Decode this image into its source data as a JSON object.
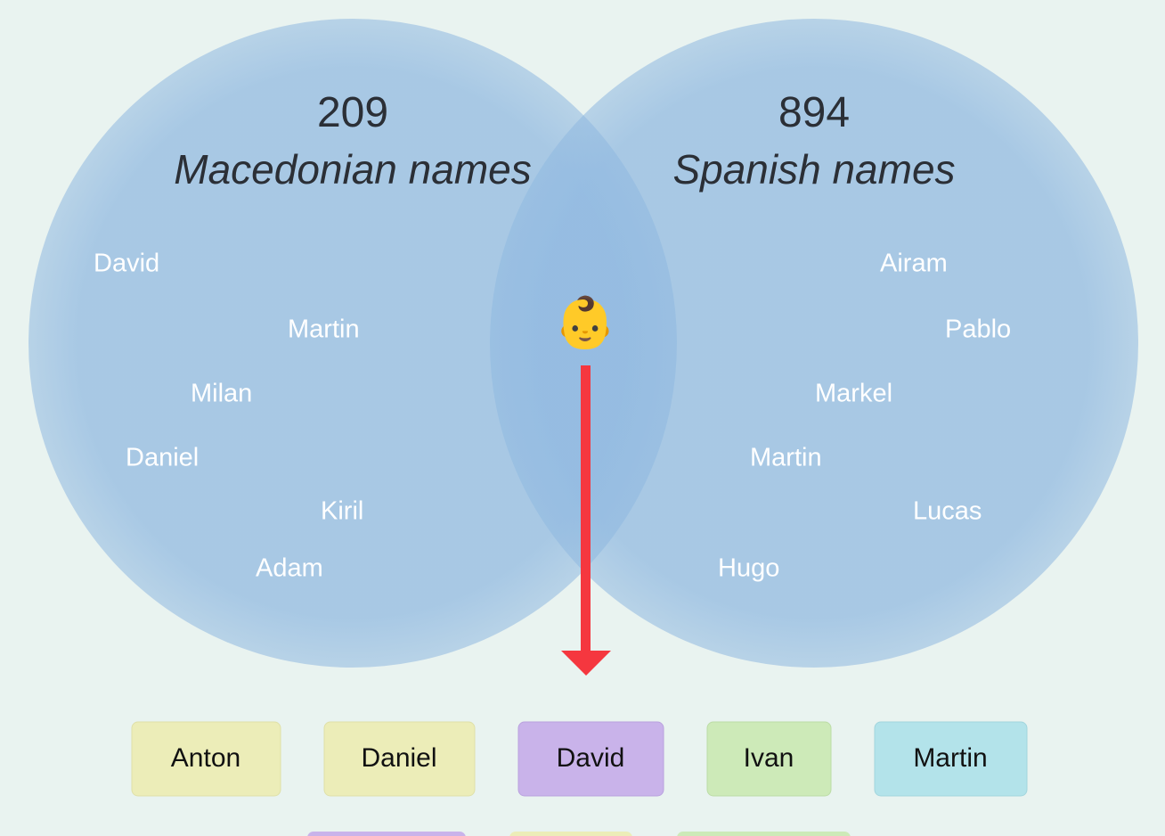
{
  "left": {
    "count": "209",
    "label": "Macedonian names",
    "names": [
      "David",
      "Martin",
      "Milan",
      "Daniel",
      "Kiril",
      "Adam"
    ]
  },
  "right": {
    "count": "894",
    "label": "Spanish names",
    "names": [
      "Airam",
      "Pablo",
      "Markel",
      "Martin",
      "Lucas",
      "Hugo"
    ]
  },
  "icon": "👶",
  "chips": [
    "Anton",
    "Daniel",
    "David",
    "Ivan",
    "Martin"
  ]
}
